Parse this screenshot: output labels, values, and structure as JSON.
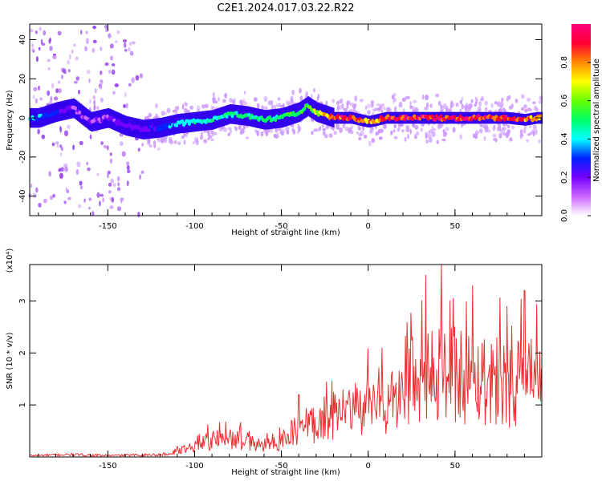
{
  "title": "C2E1.2024.017.03.22.R22",
  "chart_data": [
    {
      "type": "heatmap",
      "xlabel": "Height of straight line (km)",
      "ylabel": "Frequency (Hz)",
      "xlim": [
        -195,
        100
      ],
      "ylim": [
        -50,
        48
      ],
      "xticks": [
        -150,
        -100,
        -50,
        0,
        50
      ],
      "yticks": [
        -40,
        -20,
        0,
        20,
        40
      ],
      "grid": false,
      "colorbar": {
        "label": "Normalized spectral amplitude",
        "range": [
          0,
          1
        ],
        "ticks": [
          "0.0",
          "0.2",
          "0.4",
          "0.6",
          "0.8"
        ],
        "colors": [
          "#ffffff",
          "#cc66ff",
          "#7700ff",
          "#0022ff",
          "#00ffff",
          "#00ff66",
          "#66ff00",
          "#ffff00",
          "#ff8800",
          "#ff0033",
          "#ff0080"
        ]
      },
      "ridge": {
        "x": [
          -190,
          -180,
          -170,
          -160,
          -150,
          -140,
          -130,
          -120,
          -110,
          -100,
          -90,
          -80,
          -70,
          -60,
          -50,
          -40,
          -35,
          -30,
          -20,
          -10,
          0,
          10,
          20,
          30,
          40,
          50,
          60,
          70,
          80,
          90,
          97
        ],
        "y": [
          0,
          3,
          5,
          -2,
          0,
          -4,
          -6,
          -5,
          -3,
          -2,
          -1,
          2,
          1,
          -1,
          0,
          3,
          6,
          3,
          0,
          0,
          -2,
          0,
          0,
          0,
          0,
          0,
          0,
          0,
          0,
          -1,
          0
        ],
        "amplitude": [
          0.35,
          0.3,
          0.15,
          0.15,
          0.15,
          0.2,
          0.2,
          0.3,
          0.4,
          0.45,
          0.45,
          0.5,
          0.5,
          0.5,
          0.5,
          0.55,
          0.6,
          0.65,
          0.85,
          0.9,
          0.8,
          0.9,
          0.95,
          0.95,
          0.95,
          0.95,
          0.95,
          0.9,
          0.9,
          0.85,
          0.8
        ]
      }
    },
    {
      "type": "line",
      "xlabel": "Height of straight line (km)",
      "ylabel": "SNR (10 * v/v)",
      "y_multiplier": "(x10⁴)",
      "xlim": [
        -195,
        100
      ],
      "ylim": [
        0,
        3.7
      ],
      "xticks": [
        -150,
        -100,
        -50,
        0,
        50
      ],
      "yticks": [
        1,
        2,
        3
      ],
      "grid": false,
      "series": [
        {
          "color": "#e83030",
          "envelope_x": [
            -195,
            -170,
            -150,
            -120,
            -110,
            -100,
            -90,
            -80,
            -70,
            -60,
            -50,
            -40,
            -30,
            -20,
            -10,
            0,
            10,
            20,
            30,
            40,
            50,
            60,
            70,
            80,
            90,
            97
          ],
          "envelope_y": [
            0.03,
            0.05,
            0.03,
            0.05,
            0.12,
            0.25,
            0.35,
            0.4,
            0.3,
            0.25,
            0.35,
            0.6,
            0.75,
            0.85,
            0.95,
            1.05,
            1.1,
            1.3,
            1.55,
            1.75,
            1.8,
            1.7,
            1.7,
            1.6,
            1.6,
            1.55
          ],
          "peak_x": [
            -82,
            -40,
            8,
            33,
            42,
            60,
            90
          ],
          "peak_y": [
            0.68,
            1.2,
            2.1,
            3.5,
            3.7,
            3.3,
            3.2
          ]
        }
      ]
    }
  ]
}
